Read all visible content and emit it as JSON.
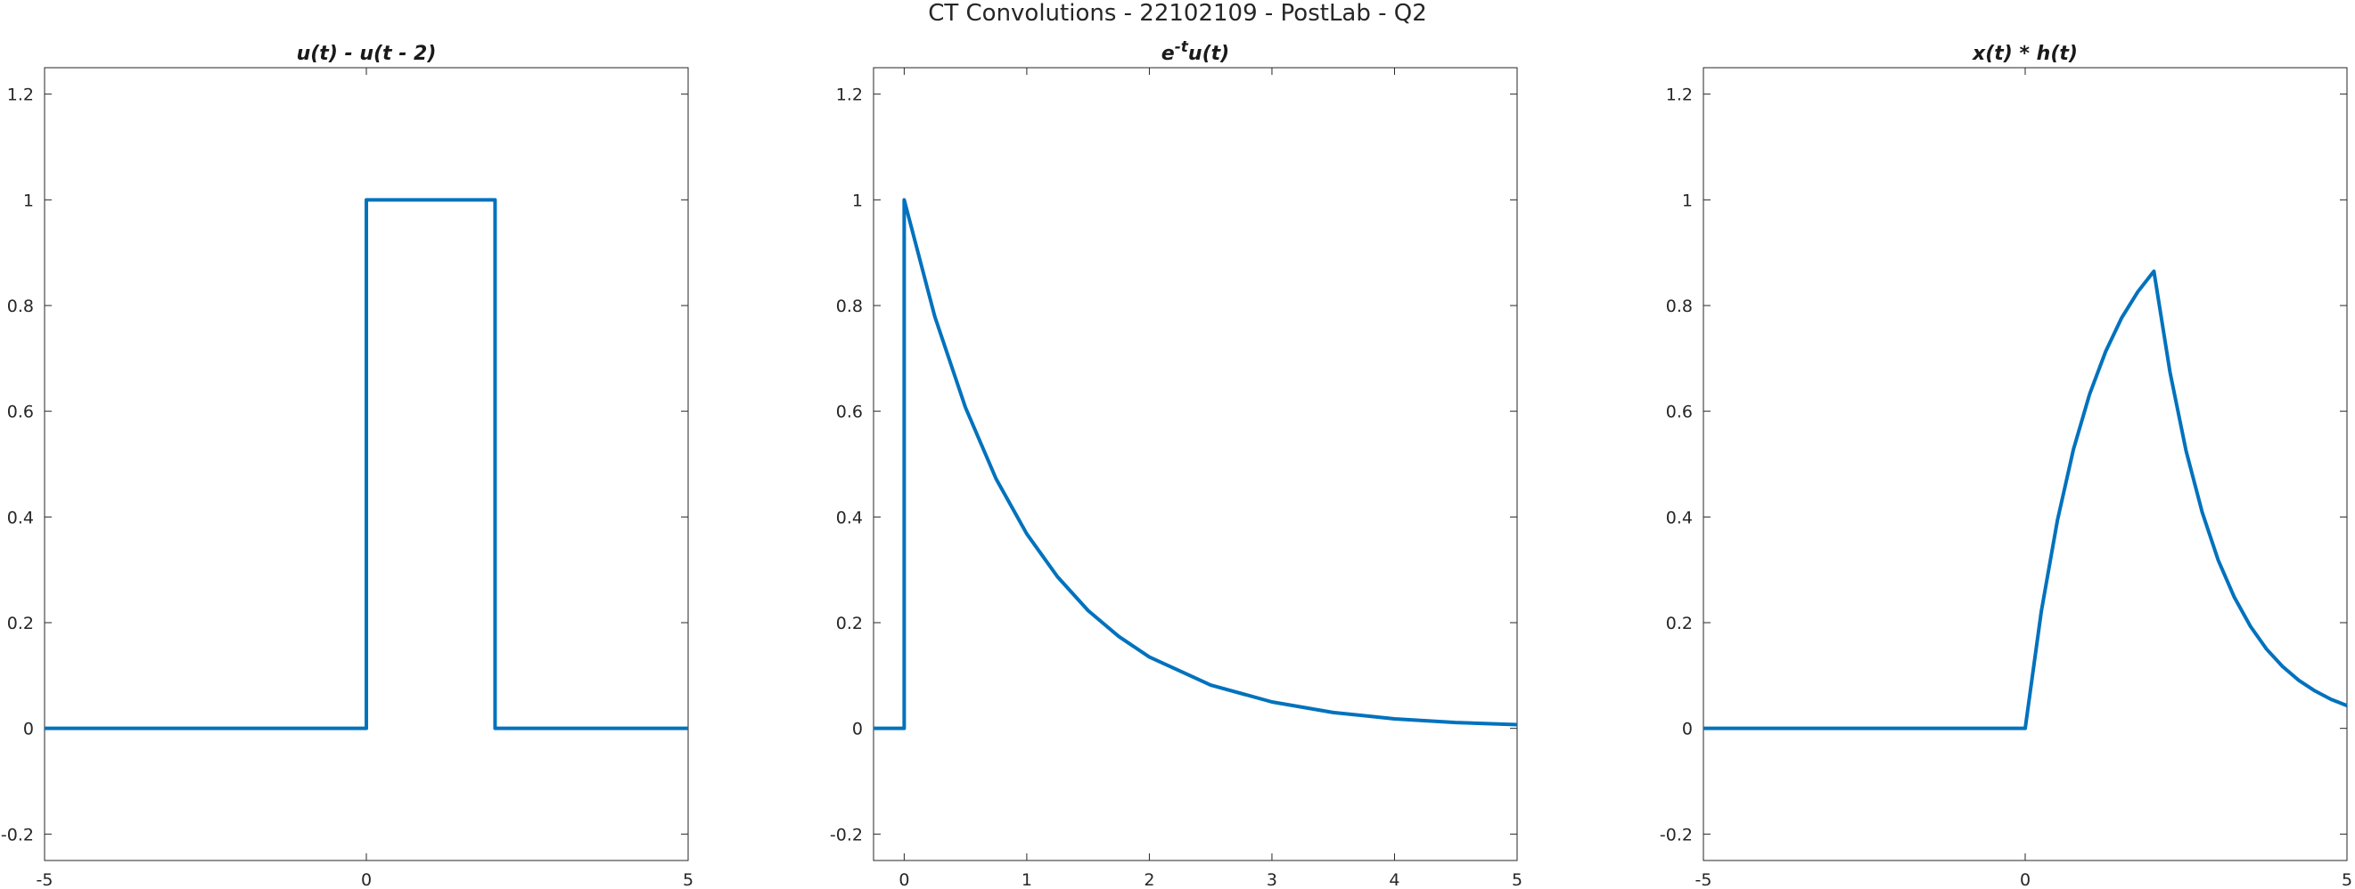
{
  "figure": {
    "title": "CT Convolutions - 22102109 - PostLab - Q2"
  },
  "chart_data": [
    {
      "type": "line",
      "title": "u(t) - u(t - 2)",
      "xlim": [
        -5,
        5
      ],
      "ylim": [
        -0.25,
        1.25
      ],
      "xticks": [
        -5,
        0,
        5
      ],
      "yticks": [
        -0.2,
        0,
        0.2,
        0.4,
        0.6,
        0.8,
        1,
        1.2
      ],
      "grid": false,
      "color": "#0072BD",
      "series": [
        {
          "x": [
            -5,
            0,
            0,
            2,
            2,
            5
          ],
          "y": [
            0,
            0,
            1,
            1,
            0,
            0
          ]
        }
      ]
    },
    {
      "type": "line",
      "title": "e-tu(t)",
      "title_parts": {
        "base": "e",
        "sup": "-t",
        "rest": "u(t)"
      },
      "xlim": [
        -0.25,
        5
      ],
      "ylim": [
        -0.25,
        1.25
      ],
      "xticks": [
        0,
        1,
        2,
        3,
        4,
        5
      ],
      "yticks": [
        -0.2,
        0,
        0.2,
        0.4,
        0.6,
        0.8,
        1,
        1.2
      ],
      "grid": false,
      "color": "#0072BD",
      "series": [
        {
          "x": [
            -0.25,
            0,
            0,
            0.25,
            0.5,
            0.75,
            1,
            1.25,
            1.5,
            1.75,
            2,
            2.5,
            3,
            3.5,
            4,
            4.5,
            5
          ],
          "y": [
            0,
            0,
            1,
            0.779,
            0.607,
            0.472,
            0.368,
            0.287,
            0.223,
            0.174,
            0.135,
            0.082,
            0.05,
            0.03,
            0.018,
            0.011,
            0.007
          ]
        }
      ]
    },
    {
      "type": "line",
      "title": "x(t) * h(t)",
      "xlim": [
        -5,
        5
      ],
      "ylim": [
        -0.25,
        1.25
      ],
      "xticks": [
        -5,
        0,
        5
      ],
      "yticks": [
        -0.2,
        0,
        0.2,
        0.4,
        0.6,
        0.8,
        1,
        1.2
      ],
      "grid": false,
      "color": "#0072BD",
      "series": [
        {
          "x": [
            -5,
            0,
            0.25,
            0.5,
            0.75,
            1,
            1.25,
            1.5,
            1.75,
            2,
            2.25,
            2.5,
            2.75,
            3,
            3.25,
            3.5,
            3.75,
            4,
            4.25,
            4.5,
            4.75,
            5
          ],
          "y": [
            0,
            0,
            0.221,
            0.393,
            0.528,
            0.632,
            0.713,
            0.777,
            0.826,
            0.865,
            0.674,
            0.525,
            0.409,
            0.318,
            0.248,
            0.193,
            0.15,
            0.117,
            0.091,
            0.071,
            0.055,
            0.043
          ]
        }
      ]
    }
  ]
}
